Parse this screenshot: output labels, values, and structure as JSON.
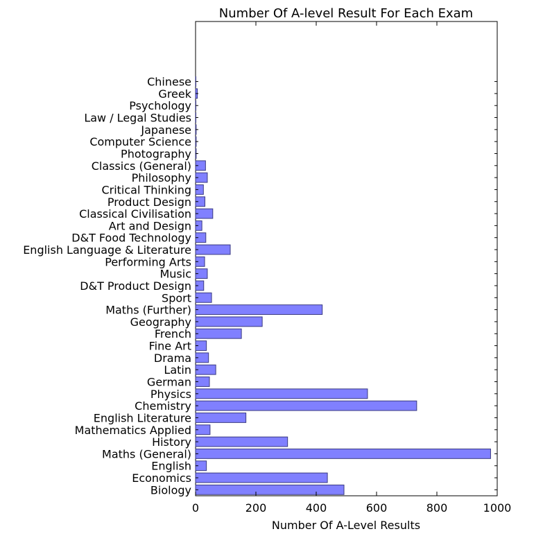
{
  "chart_data": {
    "type": "bar",
    "orientation": "horizontal",
    "title": "Number Of A-level Result For Each Exam",
    "xlabel": "Number Of A-Level Results",
    "ylabel": "",
    "xlim": [
      0,
      1000
    ],
    "xticks": [
      0,
      200,
      400,
      600,
      800,
      1000
    ],
    "xtick_labels": [
      "0",
      "200",
      "400",
      "600",
      "800",
      "1000"
    ],
    "grid": false,
    "bar_color": "#8080ff",
    "bar_edge_color": "#3a3a80",
    "categories": [
      "Biology",
      "Economics",
      "English",
      "Maths (General)",
      "History",
      "Mathematics Applied",
      "English Literature",
      "Chemistry",
      "Physics",
      "German",
      "Latin",
      "Drama",
      "Fine Art",
      "French",
      "Geography",
      "Maths (Further)",
      "Sport",
      "D&T Product Design",
      "Music",
      "Performing Arts",
      "English Language & Literature",
      "D&T Food Technology",
      "Art and Design",
      "Classical Civilisation",
      "Product Design",
      "Critical Thinking",
      "Philosophy",
      "Classics (General)",
      "Photography",
      "Computer Science",
      "Japanese",
      "Law / Legal Studies",
      "Psychology",
      "Greek",
      "Chinese"
    ],
    "values": [
      492,
      437,
      36,
      978,
      305,
      48,
      167,
      733,
      570,
      46,
      67,
      43,
      36,
      152,
      221,
      420,
      53,
      27,
      39,
      30,
      115,
      34,
      21,
      57,
      31,
      26,
      39,
      33,
      2,
      2,
      2,
      1,
      1,
      6,
      1
    ]
  }
}
